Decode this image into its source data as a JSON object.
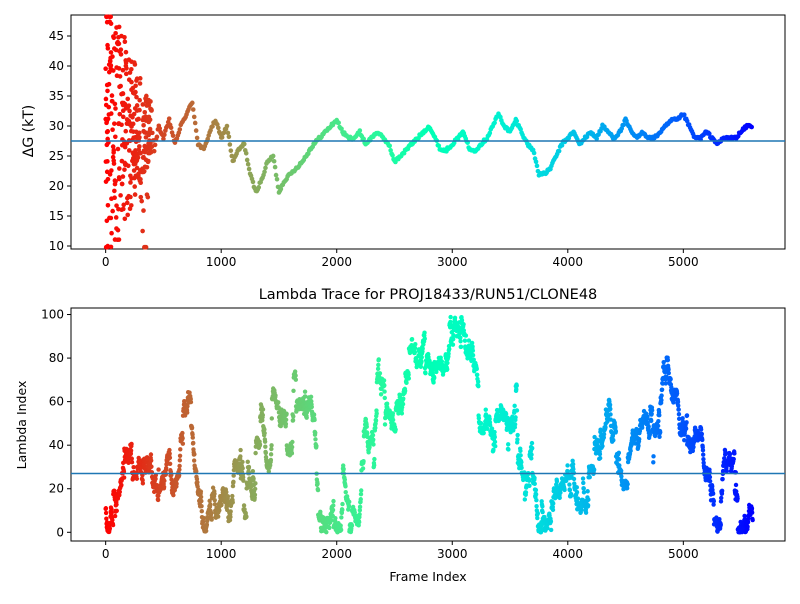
{
  "colors": {
    "refline": "#1f77b4",
    "axis": "#000000",
    "colormap": "rainbow (reversed): early frames red, late frames violet"
  },
  "chart_data": [
    {
      "type": "scatter",
      "title": "",
      "xlabel": "",
      "ylabel": "ΔG (kT)",
      "xlim": [
        -300,
        5880
      ],
      "ylim": [
        9.5,
        48.5
      ],
      "xticks": [
        0,
        1000,
        2000,
        3000,
        4000,
        5000
      ],
      "yticks": [
        10,
        15,
        20,
        25,
        30,
        35,
        40,
        45
      ],
      "hline": 27.5,
      "grid": false,
      "legend": "none",
      "color_by": "frame index",
      "n_frames": 5600,
      "early_phase_range": [
        0,
        400
      ],
      "series": [
        {
          "x": [
            0,
            10,
            20,
            35,
            50,
            70,
            90,
            110,
            130,
            160,
            200,
            240,
            280,
            320,
            350,
            380,
            420,
            460,
            500,
            550,
            600,
            650,
            700,
            750,
            800,
            850,
            900,
            950,
            1000,
            1050,
            1100,
            1150,
            1200,
            1250,
            1300,
            1350,
            1400,
            1450,
            1500,
            1550,
            1600,
            1650,
            1700,
            1800,
            1900,
            1950,
            2000,
            2050,
            2100,
            2150,
            2200,
            2250,
            2300,
            2350,
            2400,
            2450,
            2500,
            2550,
            2600,
            2650,
            2700,
            2750,
            2800,
            2850,
            2900,
            2950,
            3000,
            3050,
            3100,
            3150,
            3200,
            3250,
            3300,
            3350,
            3400,
            3450,
            3500,
            3550,
            3600,
            3650,
            3700,
            3750,
            3800,
            3850,
            3900,
            3950,
            4000,
            4050,
            4100,
            4150,
            4200,
            4250,
            4300,
            4350,
            4400,
            4450,
            4500,
            4550,
            4600,
            4650,
            4700,
            4750,
            4800,
            4850,
            4900,
            4950,
            5000,
            5050,
            5100,
            5150,
            5200,
            5250,
            5300,
            5350,
            5400,
            5450,
            5500,
            5550,
            5600
          ],
          "y": [
            36,
            30,
            22,
            45,
            40,
            26,
            39,
            42,
            34,
            28,
            32,
            30,
            22,
            14,
            10,
            33,
            26,
            30,
            28,
            31,
            27,
            30,
            32,
            34,
            27,
            26,
            29,
            31,
            28,
            30,
            24,
            26,
            27,
            22,
            19,
            21,
            24,
            25,
            19,
            21,
            22,
            23,
            24,
            27,
            29,
            30,
            31,
            29,
            28,
            28,
            29,
            27,
            28,
            29,
            28,
            27,
            24,
            25,
            26,
            27,
            28,
            29,
            30,
            28,
            26,
            26,
            27,
            28,
            29,
            26,
            26,
            27,
            28,
            30,
            32,
            30,
            29,
            31,
            29,
            27,
            26,
            22,
            22,
            23,
            25,
            27,
            28,
            29,
            27,
            28,
            29,
            28,
            30,
            29,
            28,
            29,
            31,
            29,
            28,
            29,
            28,
            28,
            29,
            30,
            31,
            31,
            32,
            30,
            28,
            28,
            29,
            28,
            27,
            28,
            28,
            28,
            29,
            30,
            30
          ]
        }
      ]
    },
    {
      "type": "scatter",
      "title": "Lambda Trace for PROJ18433/RUN51/CLONE48",
      "xlabel": "Frame Index",
      "ylabel": "Lambda Index",
      "xlim": [
        -300,
        5880
      ],
      "ylim": [
        -4,
        103
      ],
      "xticks": [
        0,
        1000,
        2000,
        3000,
        4000,
        5000
      ],
      "yticks": [
        0,
        20,
        40,
        60,
        80,
        100
      ],
      "hline": 27,
      "grid": false,
      "legend": "none",
      "color_by": "frame index",
      "value_range": [
        0,
        99
      ],
      "x_range": [
        0,
        5600
      ]
    }
  ]
}
